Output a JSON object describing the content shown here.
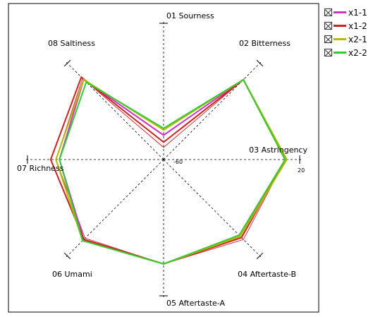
{
  "chart_data": {
    "type": "radar",
    "axes": [
      "01  Sourness",
      "02  Bitterness",
      "03  Astringency",
      "04  Aftertaste-B",
      "05  Aftertaste-A",
      "06  Umami",
      "07  Richness",
      "08  Saltiness"
    ],
    "tick_labels": {
      "center": "-60",
      "outer": "20"
    },
    "rlim": [
      -60,
      20
    ],
    "legend_position": "top-right",
    "series": [
      {
        "name": "x1-1",
        "color": "#cc33cc",
        "values": [
          -46,
          5,
          10,
          2.5,
          0,
          5,
          0,
          5
        ]
      },
      {
        "name": "x1-2",
        "color": "#cc2222",
        "values": [
          -50,
          5,
          10,
          3.5,
          0,
          5,
          5,
          7
        ]
      },
      {
        "name": "x2-1",
        "color": "#b8b800",
        "values": [
          -43,
          5,
          11,
          2.5,
          0,
          6,
          2,
          5
        ]
      },
      {
        "name": "x2-2",
        "color": "#33cc33",
        "values": [
          -42,
          5,
          10,
          1.5,
          0,
          6,
          0,
          3
        ]
      }
    ],
    "extra_lines": [
      {
        "color": "#cc3333",
        "values": [
          -53,
          5,
          10,
          5,
          0,
          4,
          2,
          6
        ]
      }
    ]
  },
  "legend": {
    "items": [
      {
        "label": "x1-1",
        "color": "#cc33cc"
      },
      {
        "label": "x1-2",
        "color": "#cc2222"
      },
      {
        "label": "x2-1",
        "color": "#b8b800"
      },
      {
        "label": "x2-2",
        "color": "#33cc33"
      }
    ]
  }
}
